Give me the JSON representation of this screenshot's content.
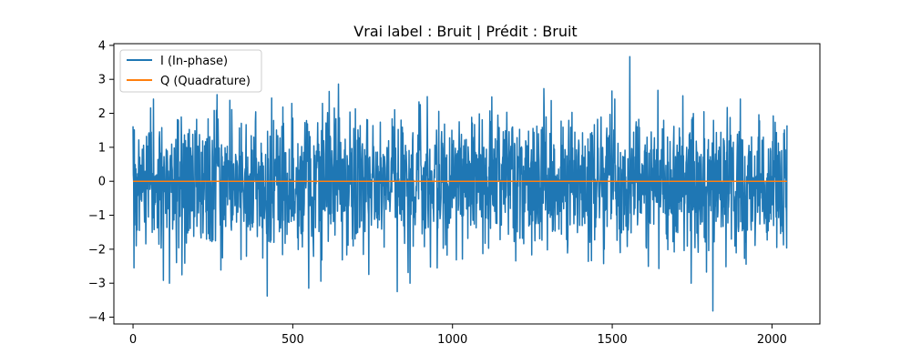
{
  "chart_data": {
    "type": "line",
    "title": "Vrai label : Bruit | Prédit : Bruit",
    "xlabel": "",
    "ylabel": "",
    "xlim": [
      -60,
      2150
    ],
    "ylim": [
      -4.2,
      4.05
    ],
    "x_ticks": [
      0,
      500,
      1000,
      1500,
      2000
    ],
    "x_tick_labels": [
      "0",
      "500",
      "1000",
      "1500",
      "2000"
    ],
    "y_ticks": [
      -4,
      -3,
      -2,
      -1,
      0,
      1,
      2,
      3,
      4
    ],
    "y_tick_labels": [
      "−4",
      "−3",
      "−2",
      "−1",
      "0",
      "1",
      "2",
      "3",
      "4"
    ],
    "grid": false,
    "legend_position": "top-left",
    "n_samples": 2048,
    "series": [
      {
        "name": "I (In-phase)",
        "color": "#1f77b4",
        "distribution": "gaussian",
        "mean": 0,
        "std": 1.0,
        "extremes": [
          {
            "x": 3,
            "y": -2.55
          },
          {
            "x": 263,
            "y": 2.55
          },
          {
            "x": 420,
            "y": -3.38
          },
          {
            "x": 550,
            "y": -3.15
          },
          {
            "x": 827,
            "y": -3.25
          },
          {
            "x": 1555,
            "y": 3.67
          },
          {
            "x": 1815,
            "y": -3.82
          }
        ]
      },
      {
        "name": "Q (Quadrature)",
        "color": "#ff7f0e",
        "constant": 0
      }
    ]
  }
}
